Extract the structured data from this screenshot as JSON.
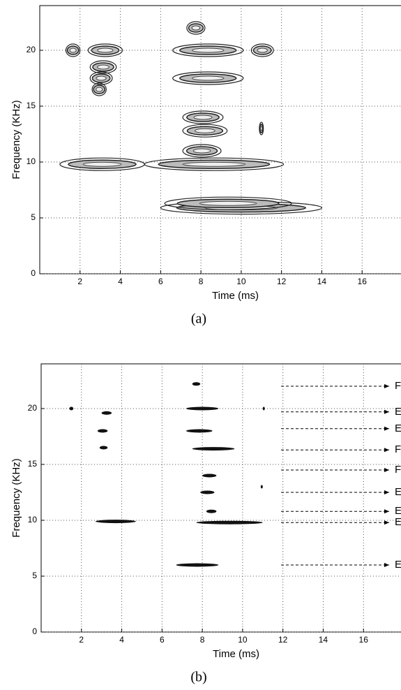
{
  "chart_data": [
    {
      "type": "contour",
      "xlabel": "Time (ms)",
      "ylabel": "Frequency (KHz)",
      "caption": "(a)",
      "xlim": [
        0,
        18
      ],
      "ylim": [
        0,
        24
      ],
      "xticks": [
        2,
        4,
        6,
        8,
        10,
        12,
        14,
        16
      ],
      "yticks": [
        0,
        5,
        10,
        15,
        20
      ],
      "grid": true,
      "color": "#222222",
      "contours": {
        "x_start": [
          1.3,
          2.4,
          2.5,
          2.5,
          2.6,
          7.3,
          6.6,
          6.6,
          10.5,
          7.1,
          7.1,
          7.1,
          1.0,
          5.2,
          6.0,
          6.2,
          10.9
        ],
        "x_end": [
          2.0,
          4.1,
          3.8,
          3.6,
          3.3,
          8.2,
          10.1,
          10.1,
          11.6,
          9.1,
          9.3,
          9.0,
          5.2,
          12.1,
          14.0,
          12.5,
          11.1
        ],
        "y": [
          20,
          20,
          18.5,
          17.5,
          16.5,
          22,
          20,
          17.5,
          20,
          14,
          12.8,
          11,
          9.8,
          9.8,
          5.9,
          6.3,
          13
        ]
      }
    },
    {
      "type": "ridge",
      "xlabel": "Time (ms)",
      "ylabel": "Frequency (KHz)",
      "caption": "(b)",
      "xlim": [
        0,
        18
      ],
      "ylim": [
        0,
        24
      ],
      "xticks": [
        2,
        4,
        6,
        8,
        10,
        12,
        14,
        16
      ],
      "yticks": [
        0,
        5,
        10,
        15,
        20
      ],
      "grid": true,
      "color": "#111111",
      "contours": {
        "x_start": [
          1.4,
          3.0,
          2.8,
          2.9,
          2.7,
          7.5,
          7.2,
          7.2,
          7.5,
          8.0,
          7.9,
          8.2,
          7.7,
          6.7,
          11.0,
          10.9
        ],
        "x_end": [
          1.6,
          3.5,
          3.3,
          3.3,
          4.7,
          7.9,
          8.8,
          8.5,
          9.6,
          8.7,
          8.6,
          8.7,
          11.0,
          8.8,
          11.1,
          11.0
        ],
        "y": [
          20,
          19.6,
          18,
          16.5,
          9.9,
          22.2,
          20,
          18,
          16.4,
          14,
          12.5,
          10.8,
          9.8,
          6,
          20,
          13
        ]
      },
      "annotations": [
        {
          "text": "F",
          "y": 22
        },
        {
          "text": "E",
          "y": 19.7
        },
        {
          "text": "E",
          "y": 18.2
        },
        {
          "text": "F",
          "y": 16.3
        },
        {
          "text": "F",
          "y": 14.5
        },
        {
          "text": "E",
          "y": 12.5
        },
        {
          "text": "E",
          "y": 10.8
        },
        {
          "text": "E",
          "y": 9.8
        },
        {
          "text": "E",
          "y": 6
        }
      ]
    }
  ]
}
